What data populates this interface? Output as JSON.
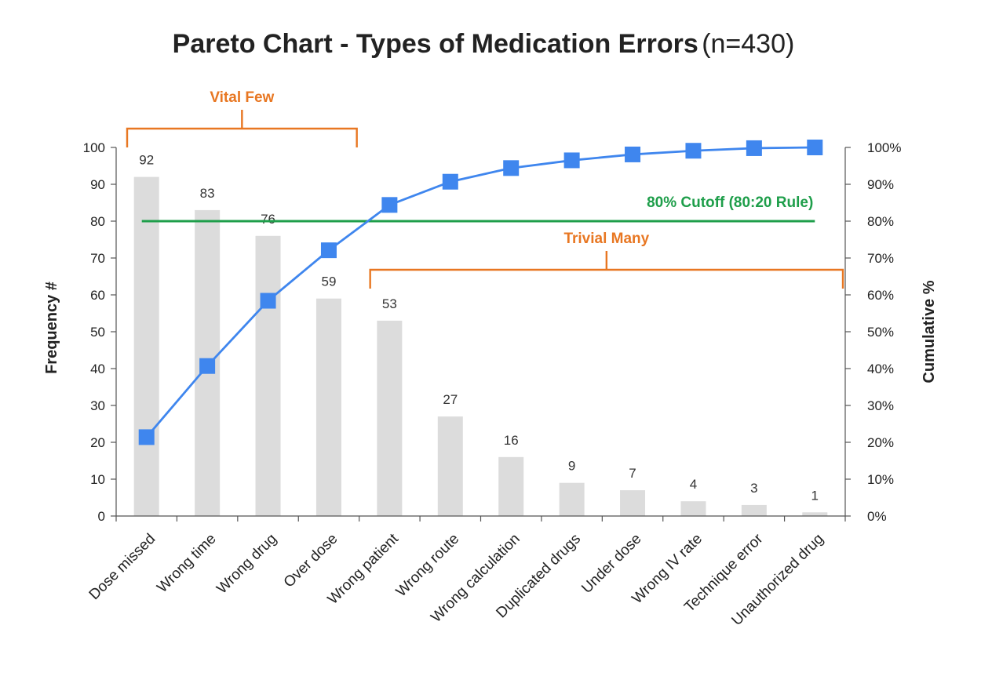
{
  "chart_data": {
    "type": "bar",
    "title": "Pareto Chart - Types of Medication Errors",
    "subtitle": "(n=430)",
    "categories": [
      "Dose missed",
      "Wrong time",
      "Wrong drug",
      "Over dose",
      "Wrong patient",
      "Wrong route",
      "Wrong calculation",
      "Duplicated drugs",
      "Under dose",
      "Wrong IV rate",
      "Technique error",
      "Unauthorized drug"
    ],
    "series": [
      {
        "values": [
          92,
          83,
          76,
          59,
          53,
          27,
          16,
          9,
          7,
          4,
          3,
          1
        ]
      },
      {
        "values": [
          21.4,
          40.7,
          58.4,
          72.1,
          84.4,
          90.7,
          94.4,
          96.5,
          98.1,
          99.1,
          99.8,
          100
        ]
      }
    ],
    "data_labels": [
      "92",
      "83",
      "76",
      "59",
      "53",
      "27",
      "16",
      "9",
      "7",
      "4",
      "3",
      "1"
    ],
    "ylabel": "Frequency #",
    "y2label": "Cumulative %",
    "ylim": [
      0,
      100
    ],
    "y2lim": [
      0,
      100
    ],
    "yticks": [
      "0",
      "10",
      "20",
      "30",
      "40",
      "50",
      "60",
      "70",
      "80",
      "90",
      "100"
    ],
    "y2ticks": [
      "0%",
      "10%",
      "20%",
      "30%",
      "40%",
      "50%",
      "60%",
      "70%",
      "80%",
      "90%",
      "100%"
    ],
    "cutoff": {
      "value": 80,
      "label": "80% Cutoff (80:20 Rule)",
      "color": "#1e9e4a"
    },
    "annotations": [
      {
        "label": "Vital Few",
        "from_category": 0,
        "to_category": 3,
        "color": "#e87722"
      },
      {
        "label": "Trivial Many",
        "from_category": 4,
        "to_category": 11,
        "color": "#e87722"
      }
    ],
    "colors": {
      "bars": "#dcdcdc",
      "line": "#3f86ee",
      "markers": "#3f86ee"
    },
    "grid": false,
    "legend": "none"
  }
}
